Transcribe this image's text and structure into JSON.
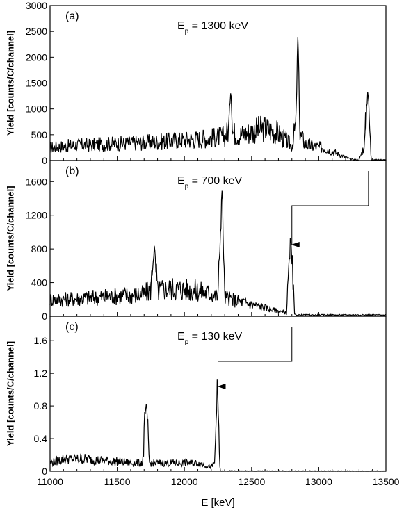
{
  "chart_data": [
    {
      "type": "line",
      "panel_label": "(a)",
      "beam_energy": {
        "prefix": "E",
        "subscript": "p",
        "value": " = 1300 keV"
      },
      "ylabel": "Yield [counts/C/channel]",
      "xlim": [
        11000,
        13500
      ],
      "ylim": [
        0,
        3000
      ],
      "yticks": [
        0,
        500,
        1000,
        1500,
        2000,
        2500,
        3000
      ],
      "ytick_labels": [
        "0",
        "500",
        "1000",
        "1500",
        "2000",
        "2500",
        "3000"
      ],
      "series": [
        {
          "x": [
            11000,
            11100,
            11200,
            11300,
            11400,
            11500,
            11600,
            11700,
            11800,
            11900,
            12000,
            12100,
            12200,
            12300,
            12330,
            12345,
            12360,
            12400,
            12450,
            12500,
            12550,
            12600,
            12650,
            12700,
            12750,
            12800,
            12830,
            12845,
            12860,
            12900,
            12950,
            13000,
            13050,
            13100,
            13150,
            13200,
            13250,
            13300,
            13340,
            13365,
            13390,
            13420,
            13500
          ],
          "y": [
            250,
            280,
            300,
            300,
            320,
            330,
            340,
            350,
            360,
            380,
            400,
            420,
            440,
            470,
            600,
            1500,
            550,
            500,
            520,
            560,
            600,
            620,
            580,
            520,
            400,
            280,
            700,
            2450,
            500,
            320,
            280,
            260,
            240,
            180,
            120,
            60,
            20,
            10,
            300,
            1450,
            20,
            15,
            15
          ]
        }
      ]
    },
    {
      "type": "line",
      "panel_label": "(b)",
      "beam_energy": {
        "prefix": "E",
        "subscript": "p",
        "value": " = 700 keV"
      },
      "ylabel": "Yield [counts/C/channel]",
      "xlim": [
        11000,
        13500
      ],
      "ylim": [
        0,
        1850
      ],
      "yticks": [
        0,
        400,
        800,
        1200,
        1600
      ],
      "ytick_labels": [
        "0",
        "400",
        "800",
        "1200",
        "1600"
      ],
      "series": [
        {
          "x": [
            11000,
            11100,
            11200,
            11300,
            11400,
            11500,
            11600,
            11700,
            11750,
            11775,
            11800,
            11850,
            11900,
            12000,
            12100,
            12200,
            12250,
            12280,
            12300,
            12350,
            12400,
            12500,
            12600,
            12700,
            12760,
            12790,
            12820,
            12850,
            13000,
            13200,
            13500
          ],
          "y": [
            200,
            200,
            210,
            220,
            230,
            240,
            250,
            260,
            320,
            830,
            300,
            320,
            330,
            320,
            300,
            270,
            230,
            1520,
            220,
            200,
            180,
            140,
            100,
            60,
            40,
            920,
            20,
            15,
            15,
            15,
            15
          ]
        }
      ]
    },
    {
      "type": "line",
      "panel_label": "(c)",
      "beam_energy": {
        "prefix": "E",
        "subscript": "p",
        "value": " = 130 keV"
      },
      "ylabel": "Yield [counts/C/channel]",
      "xlabel": "E [keV]",
      "xlim": [
        11000,
        13500
      ],
      "ylim": [
        0,
        1.9
      ],
      "yticks": [
        0,
        0.4,
        0.8,
        1.2,
        1.6
      ],
      "ytick_labels": [
        "0",
        "0.4",
        "0.8",
        "1.2",
        "1.6"
      ],
      "xticks": [
        11000,
        11500,
        12000,
        12500,
        13000,
        13500
      ],
      "xtick_labels": [
        "11000",
        "11500",
        "12000",
        "12500",
        "13000",
        "13500"
      ],
      "series": [
        {
          "x": [
            11000,
            11100,
            11200,
            11300,
            11400,
            11500,
            11600,
            11690,
            11715,
            11740,
            11800,
            11900,
            12000,
            12100,
            12200,
            12225,
            12245,
            12265,
            12300,
            13000,
            13500
          ],
          "y": [
            0.1,
            0.15,
            0.15,
            0.15,
            0.13,
            0.12,
            0.1,
            0.1,
            0.85,
            0.1,
            0.1,
            0.1,
            0.1,
            0.1,
            0.05,
            0.1,
            1.07,
            0.0,
            0.0,
            0.0,
            0.0
          ]
        }
      ]
    }
  ],
  "arrows": [
    {
      "from_panel": 0,
      "to_panel": 1,
      "x_start": 13370,
      "x_end": 12800
    },
    {
      "from_panel": 1,
      "to_panel": 2,
      "x_start": 12800,
      "x_end": 12250
    }
  ]
}
